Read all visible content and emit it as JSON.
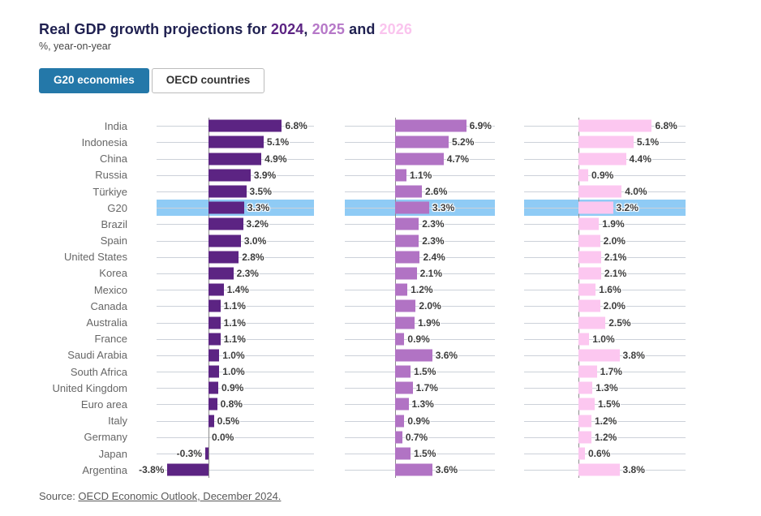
{
  "title": {
    "prefix": "Real GDP growth projections for ",
    "year1": "2024",
    "sep1": ", ",
    "year2": "2025",
    "sep2": " and ",
    "year3": "2026"
  },
  "subtitle": "%, year-on-year",
  "tabs": [
    {
      "label": "G20 economies",
      "active": true
    },
    {
      "label": "OECD countries",
      "active": false
    }
  ],
  "source": {
    "prefix": "Source: ",
    "link_text": "OECD Economic Outlook, December 2024."
  },
  "colors": {
    "year_2024": "#5c2483",
    "year_2025": "#b173c4",
    "year_2026": "#fcc7f0",
    "highlight_row": "#8fcbf5",
    "active_tab": "#2478a9"
  },
  "chart_data": {
    "type": "bar",
    "orientation": "horizontal",
    "value_suffix": "%",
    "highlighted_category": "G20",
    "categories": [
      "India",
      "Indonesia",
      "China",
      "Russia",
      "Türkiye",
      "G20",
      "Brazil",
      "Spain",
      "United States",
      "Korea",
      "Mexico",
      "Canada",
      "Australia",
      "France",
      "Saudi Arabia",
      "South Africa",
      "United Kingdom",
      "Euro area",
      "Italy",
      "Germany",
      "Japan",
      "Argentina"
    ],
    "series": [
      {
        "name": "2024",
        "color": "#5c2483",
        "values": [
          6.8,
          5.1,
          4.9,
          3.9,
          3.5,
          3.3,
          3.2,
          3.0,
          2.8,
          2.3,
          1.4,
          1.1,
          1.1,
          1.1,
          1.0,
          1.0,
          0.9,
          0.8,
          0.5,
          0.0,
          -0.3,
          -3.8
        ]
      },
      {
        "name": "2025",
        "color": "#b173c4",
        "values": [
          6.9,
          5.2,
          4.7,
          1.1,
          2.6,
          3.3,
          2.3,
          2.3,
          2.4,
          2.1,
          1.2,
          2.0,
          1.9,
          0.9,
          3.6,
          1.5,
          1.7,
          1.3,
          0.9,
          0.7,
          1.5,
          3.6
        ]
      },
      {
        "name": "2026",
        "color": "#fcc7f0",
        "values": [
          6.8,
          5.1,
          4.4,
          0.9,
          4.0,
          3.2,
          1.9,
          2.0,
          2.1,
          2.1,
          1.6,
          2.0,
          2.5,
          1.0,
          3.8,
          1.7,
          1.3,
          1.5,
          1.2,
          1.2,
          0.6,
          3.8
        ]
      }
    ]
  }
}
